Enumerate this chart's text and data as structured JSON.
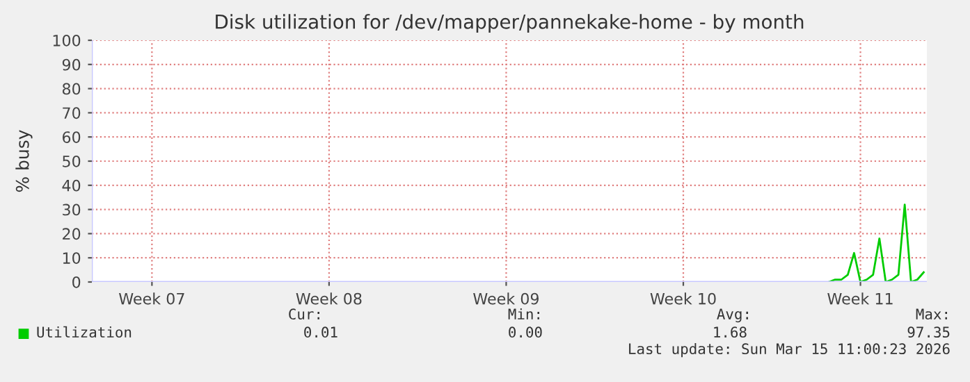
{
  "chart_data": {
    "type": "line",
    "title": "Disk utilization for /dev/mapper/pannekake-home - by month",
    "ylabel": "% busy",
    "categories": [
      null,
      null,
      null,
      null,
      null,
      null,
      null,
      null,
      null,
      "Week 07",
      null,
      null,
      null,
      null,
      null,
      null,
      null,
      null,
      null,
      null,
      null,
      null,
      null,
      null,
      null,
      null,
      null,
      null,
      null,
      null,
      null,
      null,
      null,
      null,
      null,
      null,
      null,
      "Week 08",
      null,
      null,
      null,
      null,
      null,
      null,
      null,
      null,
      null,
      null,
      null,
      null,
      null,
      null,
      null,
      null,
      null,
      null,
      null,
      null,
      null,
      null,
      null,
      null,
      null,
      null,
      null,
      "Week 09",
      null,
      null,
      null,
      null,
      null,
      null,
      null,
      null,
      null,
      null,
      null,
      null,
      null,
      null,
      null,
      null,
      null,
      null,
      null,
      null,
      null,
      null,
      null,
      null,
      null,
      null,
      null,
      "Week 10",
      null,
      null,
      null,
      null,
      null,
      null,
      null,
      null,
      null,
      null,
      null,
      null,
      null,
      null,
      null,
      null,
      null,
      null,
      null,
      null,
      null,
      null,
      null,
      null,
      null,
      null,
      null,
      "Week 11",
      null,
      null,
      null,
      null,
      null,
      null,
      null,
      null,
      null,
      null
    ],
    "series": [
      {
        "name": "Utilization",
        "color": "#00cc00",
        "values": [
          null,
          null,
          null,
          null,
          null,
          null,
          null,
          null,
          null,
          null,
          null,
          null,
          null,
          null,
          null,
          null,
          null,
          null,
          null,
          null,
          null,
          null,
          null,
          null,
          null,
          null,
          null,
          null,
          null,
          null,
          null,
          null,
          null,
          null,
          null,
          null,
          null,
          null,
          null,
          null,
          null,
          null,
          null,
          null,
          null,
          null,
          null,
          null,
          null,
          null,
          null,
          null,
          null,
          null,
          null,
          null,
          null,
          null,
          null,
          null,
          null,
          null,
          null,
          null,
          null,
          null,
          null,
          null,
          null,
          null,
          null,
          null,
          null,
          null,
          null,
          null,
          null,
          null,
          null,
          null,
          null,
          null,
          null,
          null,
          null,
          null,
          null,
          null,
          null,
          null,
          null,
          null,
          null,
          null,
          null,
          null,
          null,
          null,
          null,
          null,
          null,
          null,
          null,
          null,
          null,
          null,
          null,
          null,
          null,
          null,
          null,
          null,
          null,
          null,
          null,
          null,
          0,
          1,
          1,
          3,
          12,
          0,
          1,
          3,
          18,
          0,
          1,
          3,
          32,
          0,
          1,
          4
        ]
      }
    ],
    "ylim": [
      0,
      100
    ],
    "yticks": [
      0,
      10,
      20,
      30,
      40,
      50,
      60,
      70,
      80,
      90,
      100
    ],
    "grid": true,
    "legend": "bottom",
    "marker": "none",
    "line_style": "solid",
    "annotations": [
      "Cur:",
      "Min:",
      "Avg:",
      "Max:",
      "0.01",
      "0.00",
      "1.68",
      "97.35",
      "Last update: Sun Mar 15 11:00:23 2026"
    ]
  }
}
